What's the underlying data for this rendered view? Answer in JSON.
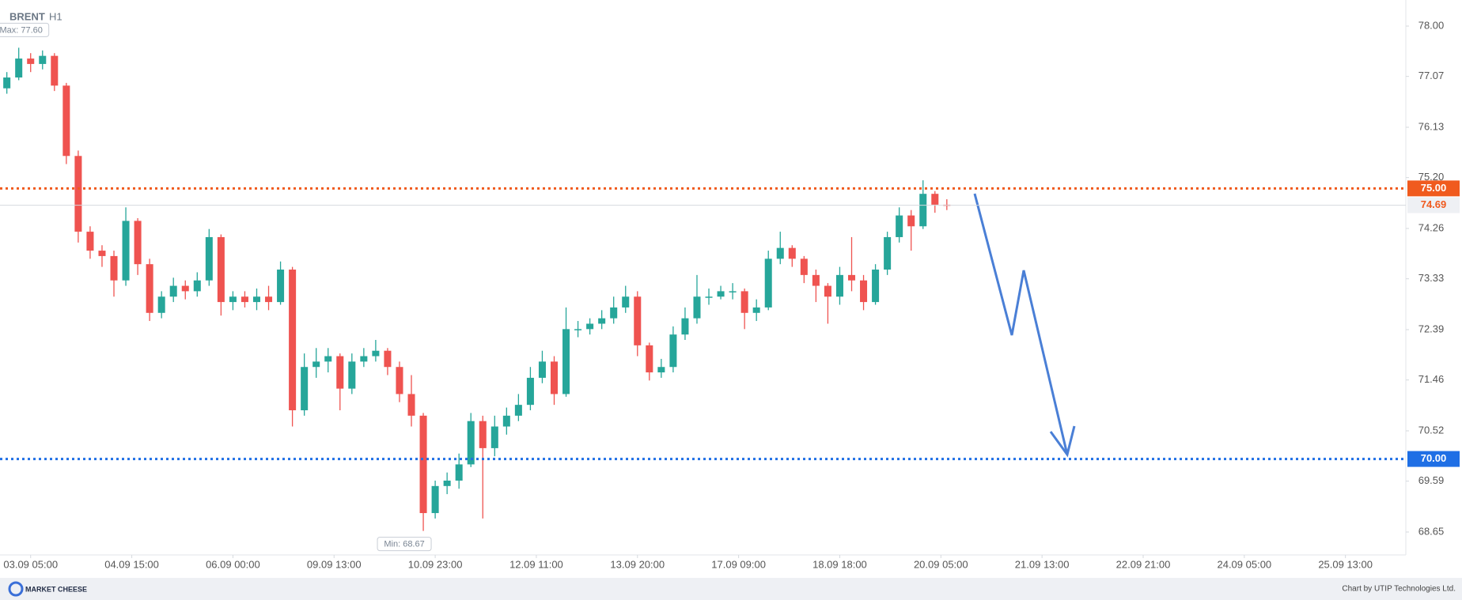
{
  "chart_data": {
    "type": "candlestick",
    "title": "BRENT",
    "subtitle": "H1",
    "x": [
      -8,
      -4,
      0,
      4,
      8,
      12,
      16,
      20,
      24,
      28,
      32,
      36,
      40,
      44,
      48,
      52,
      56,
      60,
      64,
      68,
      72,
      76,
      80,
      84,
      88,
      92,
      96,
      100,
      104,
      108,
      112,
      116,
      120,
      124,
      128,
      132,
      136,
      140,
      144,
      148,
      152,
      156,
      160,
      164,
      168,
      172,
      176,
      180,
      184,
      188,
      192,
      196,
      200,
      204,
      208,
      212,
      216,
      220,
      224,
      228,
      232,
      236,
      240,
      244,
      248,
      252,
      256,
      260,
      264,
      268,
      272,
      276,
      280,
      284,
      288,
      292,
      296,
      300,
      304,
      308
    ],
    "open": [
      76.85,
      77.05,
      77.4,
      77.3,
      77.45,
      76.9,
      75.6,
      74.2,
      73.85,
      73.75,
      73.3,
      74.4,
      73.6,
      72.7,
      73.0,
      73.2,
      73.1,
      73.3,
      74.1,
      72.9,
      73.0,
      72.9,
      73.0,
      72.9,
      73.5,
      70.9,
      71.7,
      71.8,
      71.9,
      71.3,
      71.8,
      71.9,
      72.0,
      71.7,
      71.2,
      70.8,
      69.0,
      69.5,
      69.6,
      69.9,
      70.7,
      70.2,
      70.6,
      70.8,
      71.0,
      71.5,
      71.8,
      71.2,
      72.4,
      72.4,
      72.5,
      72.6,
      72.8,
      73.0,
      72.1,
      71.6,
      71.7,
      72.3,
      72.6,
      73.0,
      73.0,
      73.1,
      73.1,
      72.7,
      72.8,
      73.7,
      73.9,
      73.7,
      73.4,
      73.2,
      73.0,
      73.4,
      73.3,
      72.9,
      73.5,
      74.1,
      74.5,
      74.3,
      74.9,
      74.7
    ],
    "high": [
      77.15,
      77.6,
      77.5,
      77.55,
      77.5,
      76.95,
      75.7,
      74.3,
      73.95,
      73.85,
      74.65,
      74.45,
      73.7,
      73.1,
      73.35,
      73.3,
      73.45,
      74.25,
      74.15,
      73.1,
      73.1,
      73.15,
      73.2,
      73.65,
      73.55,
      71.95,
      72.05,
      72.05,
      71.95,
      71.95,
      72.05,
      72.2,
      72.05,
      71.8,
      71.55,
      70.85,
      69.6,
      69.75,
      70.1,
      70.85,
      70.8,
      70.8,
      70.95,
      71.2,
      71.7,
      72.0,
      71.9,
      72.8,
      72.55,
      72.6,
      72.75,
      73.0,
      73.2,
      73.1,
      72.15,
      71.85,
      72.45,
      72.8,
      73.4,
      73.15,
      73.2,
      73.25,
      73.15,
      72.95,
      73.85,
      74.2,
      73.95,
      73.75,
      73.5,
      73.25,
      73.55,
      74.1,
      73.4,
      73.6,
      74.2,
      74.65,
      74.6,
      75.15,
      74.95,
      74.8
    ],
    "low": [
      76.75,
      77.0,
      77.15,
      77.2,
      76.8,
      75.45,
      74.0,
      73.7,
      73.55,
      73.0,
      73.2,
      73.4,
      72.55,
      72.6,
      72.9,
      72.95,
      73.0,
      73.2,
      72.65,
      72.75,
      72.8,
      72.75,
      72.75,
      72.85,
      70.6,
      70.8,
      71.5,
      71.6,
      70.9,
      71.2,
      71.7,
      71.8,
      71.55,
      71.05,
      70.6,
      68.67,
      68.9,
      69.35,
      69.45,
      69.85,
      68.9,
      70.05,
      70.45,
      70.7,
      70.9,
      71.4,
      71.0,
      71.15,
      72.25,
      72.3,
      72.4,
      72.5,
      72.7,
      71.9,
      71.45,
      71.5,
      71.6,
      72.2,
      72.5,
      72.85,
      72.95,
      72.95,
      72.4,
      72.55,
      72.75,
      73.6,
      73.55,
      73.25,
      72.9,
      72.5,
      72.85,
      73.1,
      72.75,
      72.85,
      73.4,
      74.0,
      73.85,
      74.25,
      74.55,
      74.6
    ],
    "close": [
      77.05,
      77.4,
      77.3,
      77.45,
      76.9,
      75.6,
      74.2,
      73.85,
      73.75,
      73.3,
      74.4,
      73.6,
      72.7,
      73.0,
      73.2,
      73.1,
      73.3,
      74.1,
      72.9,
      73.0,
      72.9,
      73.0,
      72.9,
      73.5,
      70.9,
      71.7,
      71.8,
      71.9,
      71.3,
      71.8,
      71.9,
      72.0,
      71.7,
      71.2,
      70.8,
      69.0,
      69.5,
      69.6,
      69.9,
      70.7,
      70.2,
      70.6,
      70.8,
      71.0,
      71.5,
      71.8,
      71.2,
      72.4,
      72.4,
      72.5,
      72.6,
      72.8,
      73.0,
      72.1,
      71.6,
      71.7,
      72.3,
      72.6,
      73.0,
      73.0,
      73.1,
      73.1,
      72.7,
      72.8,
      73.7,
      73.9,
      73.7,
      73.4,
      73.2,
      73.0,
      73.4,
      73.3,
      72.9,
      73.5,
      74.1,
      74.5,
      74.3,
      74.9,
      74.7,
      74.69
    ],
    "up_color": "#26a69a",
    "down_color": "#ef5350",
    "xlim": [
      -10.3,
      462.3
    ],
    "xticks": [
      {
        "value": 0,
        "label": "03.09 05:00"
      },
      {
        "value": 34,
        "label": "04.09 15:00"
      },
      {
        "value": 68,
        "label": "06.09 00:00"
      },
      {
        "value": 102,
        "label": "09.09 13:00"
      },
      {
        "value": 136,
        "label": "10.09 23:00"
      },
      {
        "value": 170,
        "label": "12.09 11:00"
      },
      {
        "value": 204,
        "label": "13.09 20:00"
      },
      {
        "value": 238,
        "label": "17.09 09:00"
      },
      {
        "value": 272,
        "label": "18.09 18:00"
      },
      {
        "value": 306,
        "label": "20.09 05:00"
      },
      {
        "value": 340,
        "label": "21.09 13:00"
      },
      {
        "value": 374,
        "label": "22.09 21:00"
      },
      {
        "value": 408,
        "label": "24.09 05:00"
      },
      {
        "value": 442,
        "label": "25.09 13:00"
      }
    ],
    "ylim": [
      68.65,
      78.0
    ],
    "yticks": [
      {
        "value": 78,
        "label": "78.00"
      },
      77.07,
      76.13,
      {
        "value": 75.2,
        "label": "75.20"
      },
      74.26,
      73.33,
      72.39,
      71.46,
      70.52,
      69.59,
      68.65
    ],
    "levels": [
      {
        "value": 75,
        "label": "75.00",
        "color": "#f05a1e"
      },
      {
        "value": 70,
        "label": "70.00",
        "color": "#1f6fe5"
      }
    ],
    "last_price": {
      "value": 74.69,
      "label": "74.69",
      "color": "#f05a1e"
    },
    "max_label": {
      "value": 77.6,
      "label": "Max: 77.60"
    },
    "min_label": {
      "value": 68.67,
      "label": "Min: 68.67"
    }
  },
  "footer": {
    "logo": "MARKET CHEESE",
    "credit": "Chart by UTIP Technologies Ltd."
  }
}
